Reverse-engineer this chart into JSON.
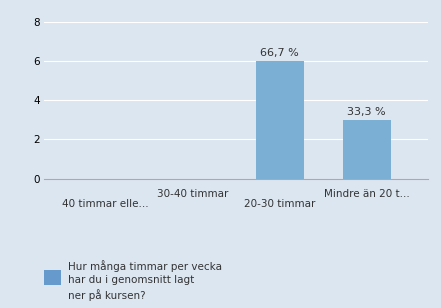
{
  "categories": [
    "40 timmar elle...",
    "30-40 timmar",
    "20-30 timmar",
    "Mindre än 20 t..."
  ],
  "values": [
    0,
    0,
    6,
    3
  ],
  "percentages": [
    "",
    "",
    "66,7 %",
    "33,3 %"
  ],
  "bar_color_light": "#7bafd4",
  "bar_color_dark": "#4a7eaa",
  "background_color": "#dce6f1",
  "plot_bg_color": "#dce6f1",
  "grid_color": "#ffffff",
  "ylim": [
    0,
    8
  ],
  "yticks": [
    0,
    2,
    4,
    6,
    8
  ],
  "legend_text_line1": "Hur många timmar per vecka",
  "legend_text_line2": "har du i genomsnitt lagt",
  "legend_text_line3": "ner på kursen?",
  "legend_color": "#6699cc",
  "tick_fontsize": 7.5,
  "label_fontsize": 8,
  "text_color": "#333333"
}
